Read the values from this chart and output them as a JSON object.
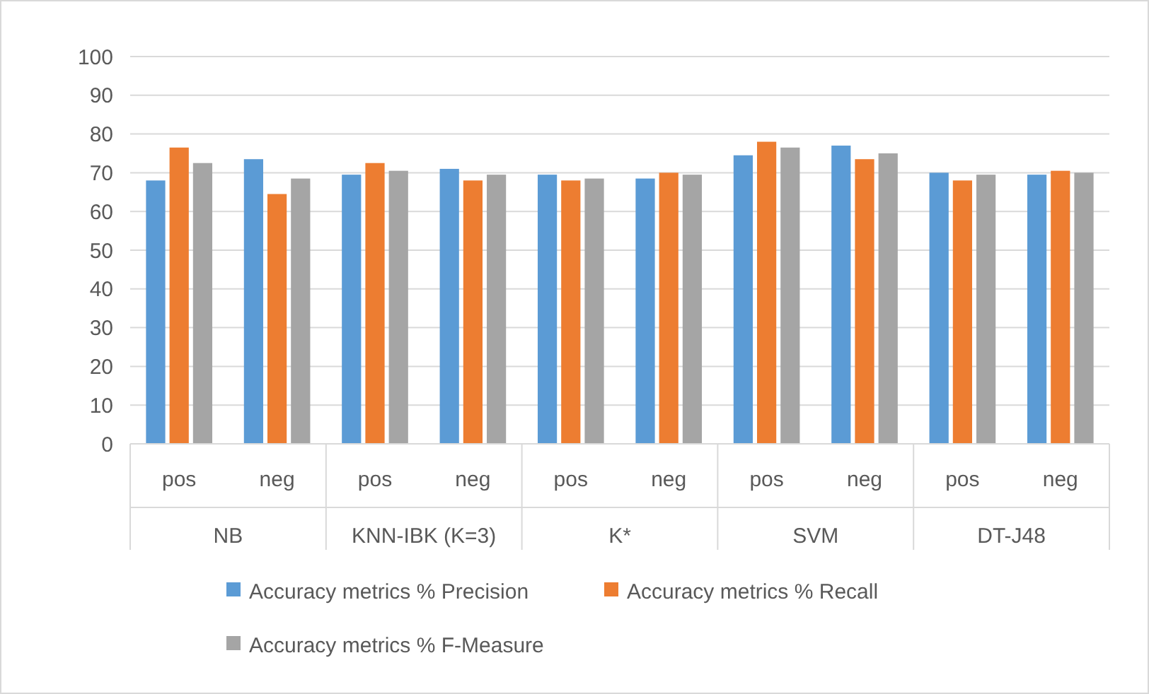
{
  "chart_data": {
    "type": "bar",
    "categories": [
      "pos",
      "neg",
      "pos",
      "neg",
      "pos",
      "neg",
      "pos",
      "neg",
      "pos",
      "neg"
    ],
    "annotations": [
      "NB",
      "KNN-IBK (K=3)",
      "K*",
      "SVM",
      "DT-J48"
    ],
    "series": [
      {
        "name": "Accuracy metrics % Precision",
        "color": "#5b9bd5",
        "values": [
          68,
          73.5,
          69.5,
          71,
          69.5,
          68.5,
          74.5,
          77,
          70,
          69.5
        ]
      },
      {
        "name": "Accuracy metrics % Recall",
        "color": "#ed7d31",
        "values": [
          76.5,
          64.5,
          72.5,
          68,
          68,
          70,
          78,
          73.5,
          68,
          70.5
        ]
      },
      {
        "name": "Accuracy metrics % F-Measure",
        "color": "#a5a5a5",
        "values": [
          72.5,
          68.5,
          70.5,
          69.5,
          68.5,
          69.5,
          76.5,
          75,
          69.5,
          70
        ]
      }
    ],
    "ylim": [
      0,
      100
    ],
    "yticks": [
      0,
      10,
      20,
      30,
      40,
      50,
      60,
      70,
      80,
      90,
      100
    ],
    "grid": "y",
    "legend": "bottom"
  }
}
